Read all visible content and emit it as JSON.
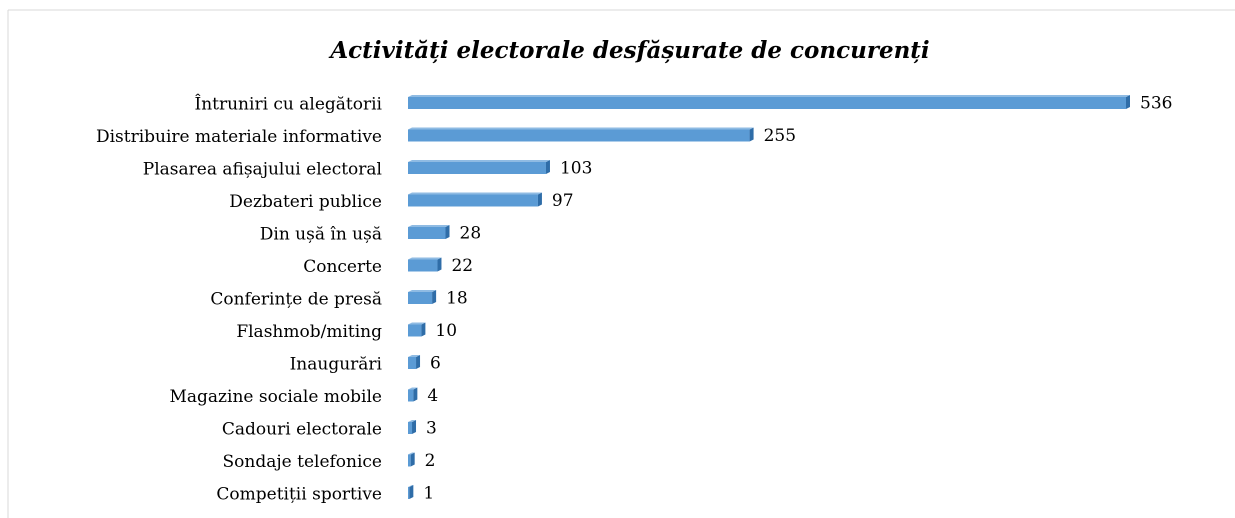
{
  "chart_data": {
    "type": "bar",
    "orientation": "horizontal",
    "title": "Activități electorale desfășurate de concurenți",
    "categories": [
      "Întruniri cu alegătorii",
      "Distribuire materiale informative",
      "Plasarea afișajului electoral",
      "Dezbateri publice",
      "Din ușă în ușă",
      "Concerte",
      "Conferințe de presă",
      "Flashmob/miting",
      "Inaugurări",
      "Magazine sociale mobile",
      "Cadouri electorale",
      "Sondaje telefonice",
      "Competiții sportive"
    ],
    "values": [
      536,
      255,
      103,
      97,
      28,
      22,
      18,
      10,
      6,
      4,
      3,
      2,
      1
    ],
    "color": "#5b9bd5"
  }
}
